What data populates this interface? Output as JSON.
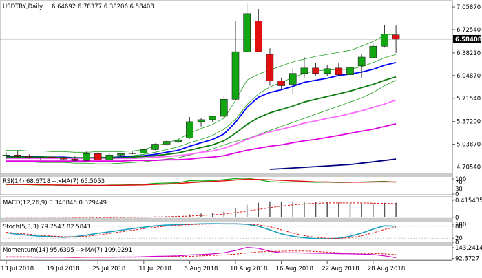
{
  "chart_data": {
    "type": "candlestick",
    "symbol": "USDTRY",
    "timeframe": "Daily",
    "header_values": "6.64692 6.78377 6.38206 6.58408",
    "last_price": "6.58408",
    "price_ticks": [
      "7.05870",
      "6.72540",
      "6.38210",
      "6.04870",
      "5.71540",
      "5.37200",
      "5.03870",
      "4.70540"
    ],
    "ylim": [
      4.63,
      7.12
    ],
    "date_labels": [
      "13 Jul 2018",
      "19 Jul 2018",
      "25 Jul 2018",
      "31 Jul 2018",
      "6 Aug 2018",
      "10 Aug 2018",
      "16 Aug 2018",
      "22 Aug 2018",
      "28 Aug 2018"
    ],
    "candles": [
      {
        "o": 4.87,
        "h": 4.92,
        "l": 4.83,
        "c": 4.88
      },
      {
        "o": 4.88,
        "h": 4.94,
        "l": 4.84,
        "c": 4.86
      },
      {
        "o": 4.86,
        "h": 4.89,
        "l": 4.83,
        "c": 4.85
      },
      {
        "o": 4.84,
        "h": 4.87,
        "l": 4.8,
        "c": 4.85
      },
      {
        "o": 4.85,
        "h": 4.88,
        "l": 4.82,
        "c": 4.84
      },
      {
        "o": 4.84,
        "h": 4.86,
        "l": 4.8,
        "c": 4.82
      },
      {
        "o": 4.82,
        "h": 4.86,
        "l": 4.79,
        "c": 4.8
      },
      {
        "o": 4.8,
        "h": 4.93,
        "l": 4.79,
        "c": 4.9
      },
      {
        "o": 4.9,
        "h": 4.92,
        "l": 4.8,
        "c": 4.81
      },
      {
        "o": 4.81,
        "h": 4.9,
        "l": 4.8,
        "c": 4.88
      },
      {
        "o": 4.88,
        "h": 4.91,
        "l": 4.86,
        "c": 4.9
      },
      {
        "o": 4.9,
        "h": 4.94,
        "l": 4.89,
        "c": 4.91
      },
      {
        "o": 4.91,
        "h": 4.97,
        "l": 4.9,
        "c": 4.96
      },
      {
        "o": 4.96,
        "h": 5.05,
        "l": 4.95,
        "c": 5.04
      },
      {
        "o": 5.04,
        "h": 5.1,
        "l": 5.02,
        "c": 5.08
      },
      {
        "o": 5.08,
        "h": 5.12,
        "l": 5.06,
        "c": 5.1
      },
      {
        "o": 5.13,
        "h": 5.44,
        "l": 5.12,
        "c": 5.37
      },
      {
        "o": 5.37,
        "h": 5.42,
        "l": 5.3,
        "c": 5.4
      },
      {
        "o": 5.4,
        "h": 5.46,
        "l": 5.36,
        "c": 5.45
      },
      {
        "o": 5.45,
        "h": 5.76,
        "l": 5.43,
        "c": 5.7
      },
      {
        "o": 5.7,
        "h": 6.85,
        "l": 5.68,
        "c": 6.4
      },
      {
        "o": 6.4,
        "h": 7.12,
        "l": 6.42,
        "c": 6.96
      },
      {
        "o": 6.85,
        "h": 7.03,
        "l": 6.4,
        "c": 6.4
      },
      {
        "o": 6.36,
        "h": 6.45,
        "l": 5.9,
        "c": 5.97
      },
      {
        "o": 5.97,
        "h": 6.02,
        "l": 5.85,
        "c": 5.9
      },
      {
        "o": 5.92,
        "h": 6.16,
        "l": 5.77,
        "c": 6.08
      },
      {
        "o": 6.08,
        "h": 6.32,
        "l": 6.02,
        "c": 6.16
      },
      {
        "o": 6.16,
        "h": 6.24,
        "l": 6.05,
        "c": 6.08
      },
      {
        "o": 6.08,
        "h": 6.21,
        "l": 6.04,
        "c": 6.15
      },
      {
        "o": 6.16,
        "h": 6.24,
        "l": 6.05,
        "c": 6.06
      },
      {
        "o": 6.06,
        "h": 6.25,
        "l": 6.04,
        "c": 6.17
      },
      {
        "o": 6.19,
        "h": 6.36,
        "l": 6.02,
        "c": 6.32
      },
      {
        "o": 6.31,
        "h": 6.52,
        "l": 6.3,
        "c": 6.48
      },
      {
        "o": 6.48,
        "h": 6.79,
        "l": 6.46,
        "c": 6.66
      },
      {
        "o": 6.64692,
        "h": 6.78377,
        "l": 6.38206,
        "c": 6.58408
      }
    ],
    "overlays": [
      {
        "color": "#1a9e1a",
        "width": 0.8,
        "values": [
          4.95,
          4.95,
          4.94,
          4.94,
          4.93,
          4.93,
          4.92,
          4.92,
          4.93,
          4.93,
          4.93,
          4.94,
          4.96,
          5.01,
          5.06,
          5.11,
          5.2,
          5.27,
          5.33,
          5.42,
          5.68,
          5.98,
          6.07,
          6.13,
          6.19,
          6.25,
          6.29,
          6.33,
          6.36,
          6.39,
          6.42,
          6.48,
          6.55,
          6.64,
          6.66
        ]
      },
      {
        "color": "#1a9e1a",
        "width": 0.8,
        "values": [
          4.79,
          4.78,
          4.78,
          4.77,
          4.77,
          4.77,
          4.76,
          4.76,
          4.75,
          4.75,
          4.76,
          4.77,
          4.78,
          4.8,
          4.82,
          4.84,
          4.88,
          4.92,
          4.97,
          5.03,
          5.08,
          5.12,
          5.18,
          5.24,
          5.3,
          5.36,
          5.42,
          5.48,
          5.54,
          5.6,
          5.66,
          5.72,
          5.8,
          5.9,
          5.98
        ]
      },
      {
        "color": "#1a9e1a",
        "width": 0.8,
        "values": [
          4.87,
          4.87,
          4.86,
          4.86,
          4.85,
          4.85,
          4.84,
          4.84,
          4.85,
          4.85,
          4.86,
          4.87,
          4.89,
          4.92,
          4.96,
          5.0,
          5.06,
          5.11,
          5.17,
          5.26,
          5.4,
          5.62,
          5.78,
          5.88,
          5.95,
          6.02,
          6.08,
          6.12,
          6.13,
          6.14,
          6.14,
          6.18,
          6.24,
          6.31,
          6.36
        ]
      },
      {
        "color": "#0000ff",
        "width": 1.8,
        "values": [
          4.86,
          4.86,
          4.86,
          4.85,
          4.85,
          4.85,
          4.84,
          4.84,
          4.84,
          4.84,
          4.85,
          4.86,
          4.87,
          4.89,
          4.92,
          4.95,
          5.01,
          5.06,
          5.11,
          5.19,
          5.36,
          5.58,
          5.73,
          5.8,
          5.84,
          5.89,
          5.95,
          5.98,
          6.01,
          6.05,
          6.07,
          6.1,
          6.14,
          6.2,
          6.24
        ]
      },
      {
        "color": "#0a7a0a",
        "width": 1.8,
        "values": [
          4.85,
          4.85,
          4.85,
          4.85,
          4.85,
          4.84,
          4.84,
          4.84,
          4.84,
          4.84,
          4.84,
          4.85,
          4.86,
          4.87,
          4.89,
          4.91,
          4.95,
          4.99,
          5.03,
          5.09,
          5.2,
          5.33,
          5.43,
          5.5,
          5.55,
          5.6,
          5.66,
          5.7,
          5.74,
          5.78,
          5.82,
          5.87,
          5.92,
          5.98,
          6.03
        ]
      },
      {
        "color": "#ff66ff",
        "width": 1.8,
        "values": [
          4.83,
          4.83,
          4.83,
          4.83,
          4.83,
          4.83,
          4.83,
          4.83,
          4.83,
          4.83,
          4.83,
          4.83,
          4.84,
          4.85,
          4.86,
          4.87,
          4.89,
          4.92,
          4.94,
          4.98,
          5.04,
          5.11,
          5.17,
          5.22,
          5.26,
          5.3,
          5.35,
          5.38,
          5.42,
          5.45,
          5.49,
          5.53,
          5.58,
          5.63,
          5.69
        ]
      },
      {
        "color": "#e000e0",
        "width": 1.8,
        "values": [
          4.79,
          4.79,
          4.79,
          4.79,
          4.79,
          4.79,
          4.79,
          4.79,
          4.79,
          4.79,
          4.79,
          4.8,
          4.8,
          4.8,
          4.81,
          4.81,
          4.82,
          4.84,
          4.85,
          4.87,
          4.91,
          4.95,
          4.98,
          5.01,
          5.03,
          5.06,
          5.09,
          5.11,
          5.14,
          5.17,
          5.2,
          5.23,
          5.26,
          5.3,
          5.34
        ]
      },
      {
        "color": "#000080",
        "width": 1.8,
        "values": [
          null,
          null,
          null,
          null,
          null,
          null,
          null,
          null,
          null,
          null,
          null,
          null,
          null,
          null,
          null,
          null,
          null,
          null,
          null,
          null,
          null,
          null,
          null,
          4.67,
          4.68,
          4.69,
          4.7,
          4.71,
          4.72,
          4.73,
          4.74,
          4.76,
          4.78,
          4.8,
          4.82
        ]
      }
    ],
    "indicators": [
      {
        "name": "rsi",
        "label": "RSI(14) 68.6718 -->MA(7) 65.5053",
        "ticks": [
          "100",
          "70",
          "30",
          "0"
        ],
        "range": [
          0,
          100
        ],
        "levels": [
          30,
          70
        ],
        "line": [
          55,
          55,
          54,
          52,
          52,
          50,
          48,
          52,
          48,
          52,
          53,
          54,
          57,
          62,
          64,
          66,
          78,
          76,
          78,
          84,
          90,
          93,
          83,
          72,
          69,
          70,
          70,
          68,
          69,
          67,
          68,
          70,
          72,
          74,
          69
        ],
        "signal": [
          56,
          56,
          55,
          54,
          53,
          52,
          51,
          51,
          50,
          50,
          51,
          52,
          53,
          56,
          58,
          61,
          66,
          70,
          73,
          77,
          82,
          86,
          85,
          83,
          80,
          77,
          74,
          71,
          70,
          69,
          69,
          69,
          70,
          71,
          70
        ]
      },
      {
        "name": "macd",
        "label": "MACD(12,26,9) 0.348846 0.329449",
        "ticks": [
          "0.415435",
          "0"
        ],
        "range": [
          -0.02,
          0.46
        ],
        "hist": [
          0.0,
          0.0,
          0.0,
          0.0,
          -0.005,
          -0.008,
          -0.01,
          -0.005,
          -0.008,
          -0.005,
          0.0,
          0.005,
          0.01,
          0.02,
          0.03,
          0.04,
          0.07,
          0.09,
          0.11,
          0.14,
          0.22,
          0.3,
          0.35,
          0.38,
          0.38,
          0.38,
          0.38,
          0.37,
          0.36,
          0.35,
          0.34,
          0.34,
          0.34,
          0.35,
          0.35
        ],
        "signal": [
          0.0,
          0.0,
          0.0,
          0.0,
          0.0,
          0.0,
          -0.003,
          -0.004,
          -0.005,
          -0.005,
          -0.004,
          -0.002,
          0.001,
          0.006,
          0.012,
          0.02,
          0.03,
          0.045,
          0.06,
          0.08,
          0.11,
          0.15,
          0.19,
          0.23,
          0.27,
          0.3,
          0.32,
          0.34,
          0.345,
          0.345,
          0.345,
          0.345,
          0.34,
          0.335,
          0.33
        ]
      },
      {
        "name": "stoch",
        "label": "Stoch(5,3,3) 79.7547 82.5841",
        "ticks": [
          "100",
          "80",
          "20",
          "0"
        ],
        "range": [
          0,
          100
        ],
        "levels": [
          20,
          80
        ],
        "line": [
          48,
          40,
          35,
          30,
          28,
          25,
          28,
          36,
          45,
          52,
          60,
          68,
          75,
          82,
          86,
          88,
          90,
          92,
          93,
          92,
          92,
          90,
          80,
          62,
          42,
          30,
          22,
          18,
          17,
          20,
          30,
          46,
          66,
          82,
          80
        ],
        "signal": [
          50,
          45,
          40,
          35,
          31,
          28,
          27,
          30,
          36,
          44,
          52,
          60,
          68,
          75,
          81,
          85,
          88,
          90,
          91,
          92,
          92,
          91,
          87,
          78,
          62,
          46,
          33,
          24,
          20,
          19,
          22,
          32,
          47,
          64,
          76
        ]
      },
      {
        "name": "momentum",
        "label": "Momentum(14) 95.6395 -->MA(7) 109.9291",
        "ticks": [
          "143.2414",
          "92.3727"
        ],
        "range": [
          88,
          150
        ],
        "line": [
          99,
          99,
          99,
          98,
          98,
          98,
          97,
          98,
          98,
          98,
          99,
          99,
          100,
          102,
          103,
          104,
          108,
          110,
          113,
          118,
          128,
          142,
          138,
          125,
          118,
          118,
          117,
          116,
          116,
          114,
          113,
          112,
          110,
          104,
          96
        ],
        "signal": [
          100,
          100,
          100,
          99,
          99,
          99,
          98,
          98,
          98,
          98,
          98,
          98,
          99,
          99,
          100,
          101,
          102,
          104,
          106,
          108,
          112,
          117,
          122,
          124,
          125,
          126,
          126,
          124,
          121,
          118,
          117,
          116,
          115,
          113,
          110
        ]
      }
    ]
  }
}
